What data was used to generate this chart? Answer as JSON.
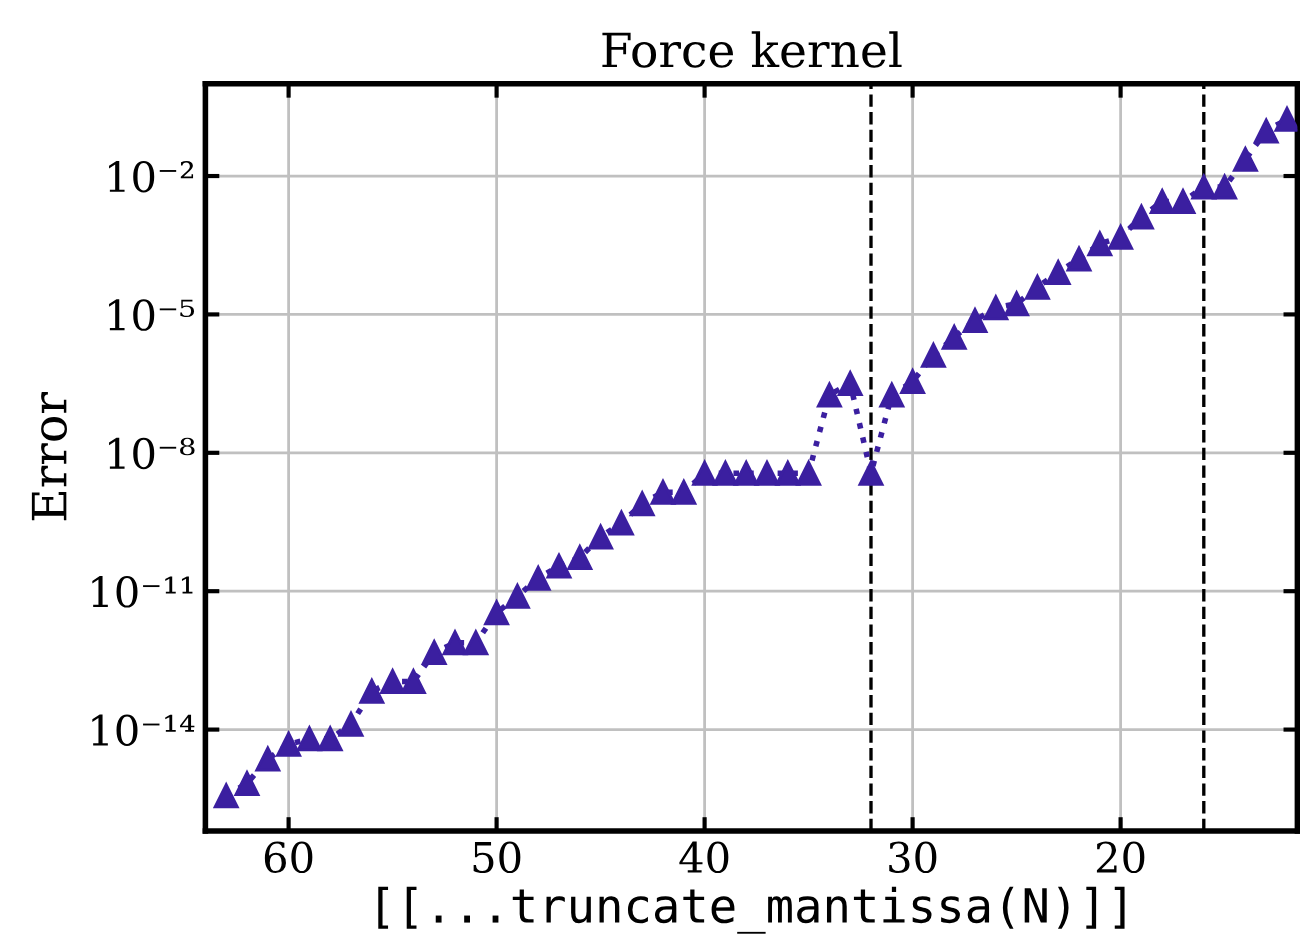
{
  "chart_data": {
    "type": "line",
    "title": "Force kernel",
    "xlabel": "[[...truncate_mantissa(N)]]",
    "ylabel": "Error",
    "x": [
      63,
      62,
      61,
      60,
      59,
      58,
      57,
      56,
      55,
      54,
      53,
      52,
      51,
      50,
      49,
      48,
      47,
      46,
      45,
      44,
      43,
      42,
      41,
      40,
      39,
      38,
      37,
      36,
      35,
      34,
      33,
      32,
      31,
      30,
      29,
      28,
      27,
      26,
      25,
      24,
      23,
      22,
      21,
      20,
      19,
      18,
      17,
      16,
      15,
      14,
      13,
      12
    ],
    "series": [
      {
        "color": "#3b1fa0",
        "values": [
          3.7e-16,
          6.8e-16,
          2.3e-15,
          4.8e-15,
          6.3e-15,
          6.3e-15,
          1.3e-14,
          6.8e-14,
          1.1e-13,
          1.1e-13,
          4.7e-13,
          7.6e-13,
          7.6e-13,
          3.4e-12,
          7.8e-12,
          1.9e-11,
          3.5e-11,
          5.4e-11,
          1.5e-10,
          3e-10,
          7.9e-10,
          1.4e-09,
          1.4e-09,
          3.6e-09,
          3.6e-09,
          3.6e-09,
          3.6e-09,
          3.6e-09,
          3.6e-09,
          1.8e-07,
          3.2e-07,
          3.6e-09,
          1.8e-07,
          3.5e-07,
          1.3e-06,
          3.2e-06,
          7.4e-06,
          1.4e-05,
          1.7e-05,
          3.9e-05,
          8.1e-05,
          0.00016,
          0.00034,
          0.00047,
          0.0013,
          0.0028,
          0.0028,
          0.0058,
          0.0058,
          0.023,
          0.095,
          0.17
        ]
      }
    ],
    "log": "y",
    "xlim": [
      64,
      11.5
    ],
    "xticks": [
      60,
      50,
      40,
      30,
      20
    ],
    "ylim": [
      6.3e-17,
      1
    ],
    "yticks": [
      {
        "value": 1e-14,
        "label": "10⁻¹⁴"
      },
      {
        "value": 1e-11,
        "label": "10⁻¹¹"
      },
      {
        "value": 1e-08,
        "label": "10⁻⁸"
      },
      {
        "value": 1e-05,
        "label": "10⁻⁵"
      },
      {
        "value": 0.01,
        "label": "10⁻²"
      }
    ],
    "ref_lines": [
      {
        "axis": "x",
        "value": 32,
        "color": "#000000",
        "line_style": "dashed"
      },
      {
        "axis": "x",
        "value": 16,
        "color": "#000000",
        "line_style": "dashed"
      }
    ],
    "grid": true,
    "marker": "triangle",
    "line_style": "dotted"
  }
}
